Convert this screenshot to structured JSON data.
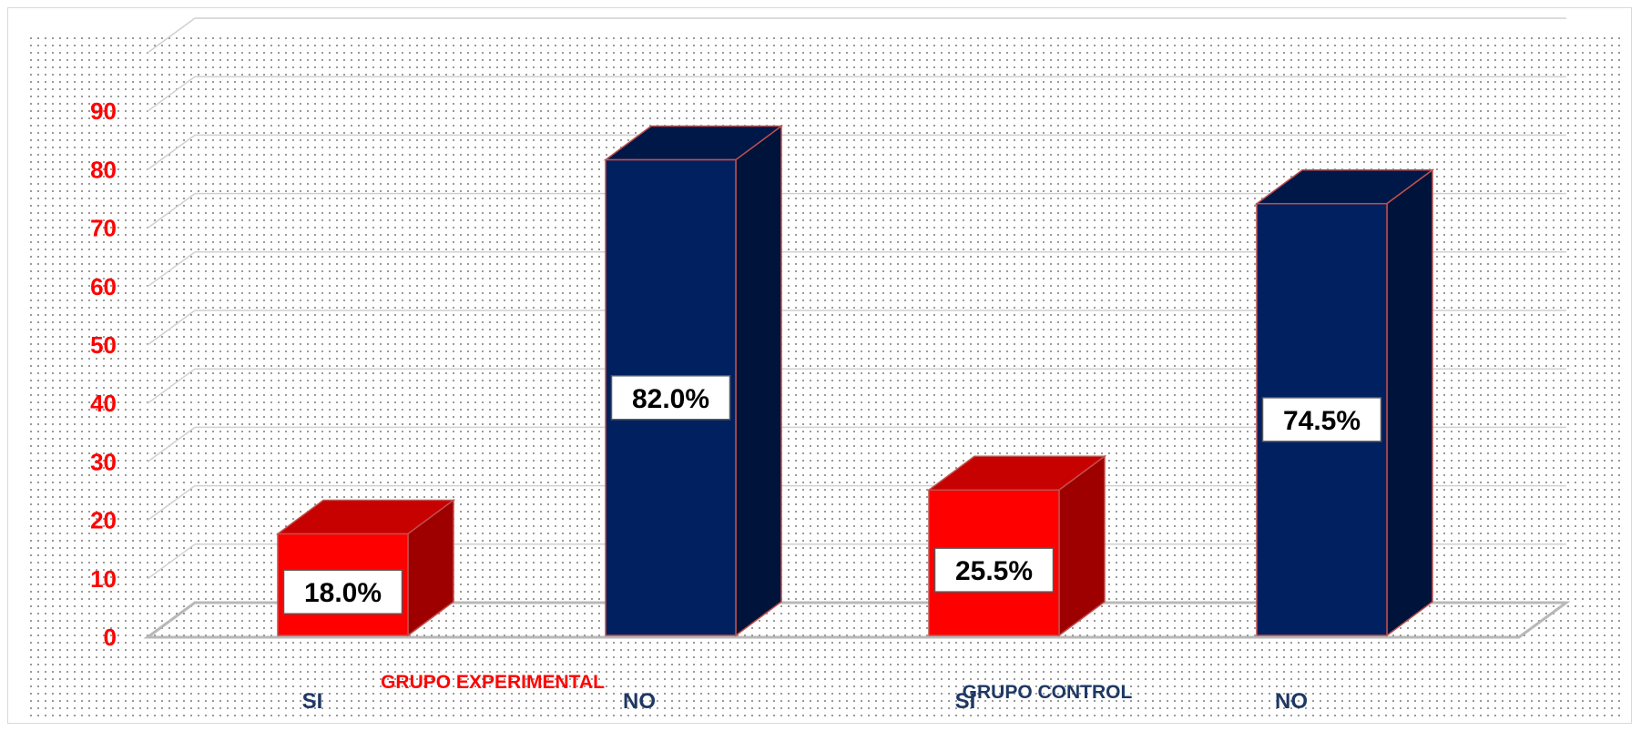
{
  "chart_data": {
    "type": "bar",
    "categories": [
      "SI",
      "NO",
      "SI",
      "NO"
    ],
    "groups": [
      "GRUPO EXPERIMENTAL",
      "GRUPO CONTROL"
    ],
    "values": [
      18.0,
      82.0,
      25.5,
      74.5
    ],
    "data_labels": [
      "18.0%",
      "82.0%",
      "25.5%",
      "74.5%"
    ],
    "yticks": [
      "0",
      "10",
      "20",
      "30",
      "40",
      "50",
      "60",
      "70",
      "80",
      "90"
    ],
    "ylim": [
      0,
      100
    ],
    "grid": true,
    "three_d": true,
    "colors": {
      "si_bar": "#ff0000",
      "no_bar": "#002060",
      "ytick_text": "#ff0000",
      "xtick_text": "#1f3864",
      "group_experimental_text": "#ff0000",
      "group_control_text": "#1f3864",
      "gridline": "#d0d0d0"
    }
  }
}
